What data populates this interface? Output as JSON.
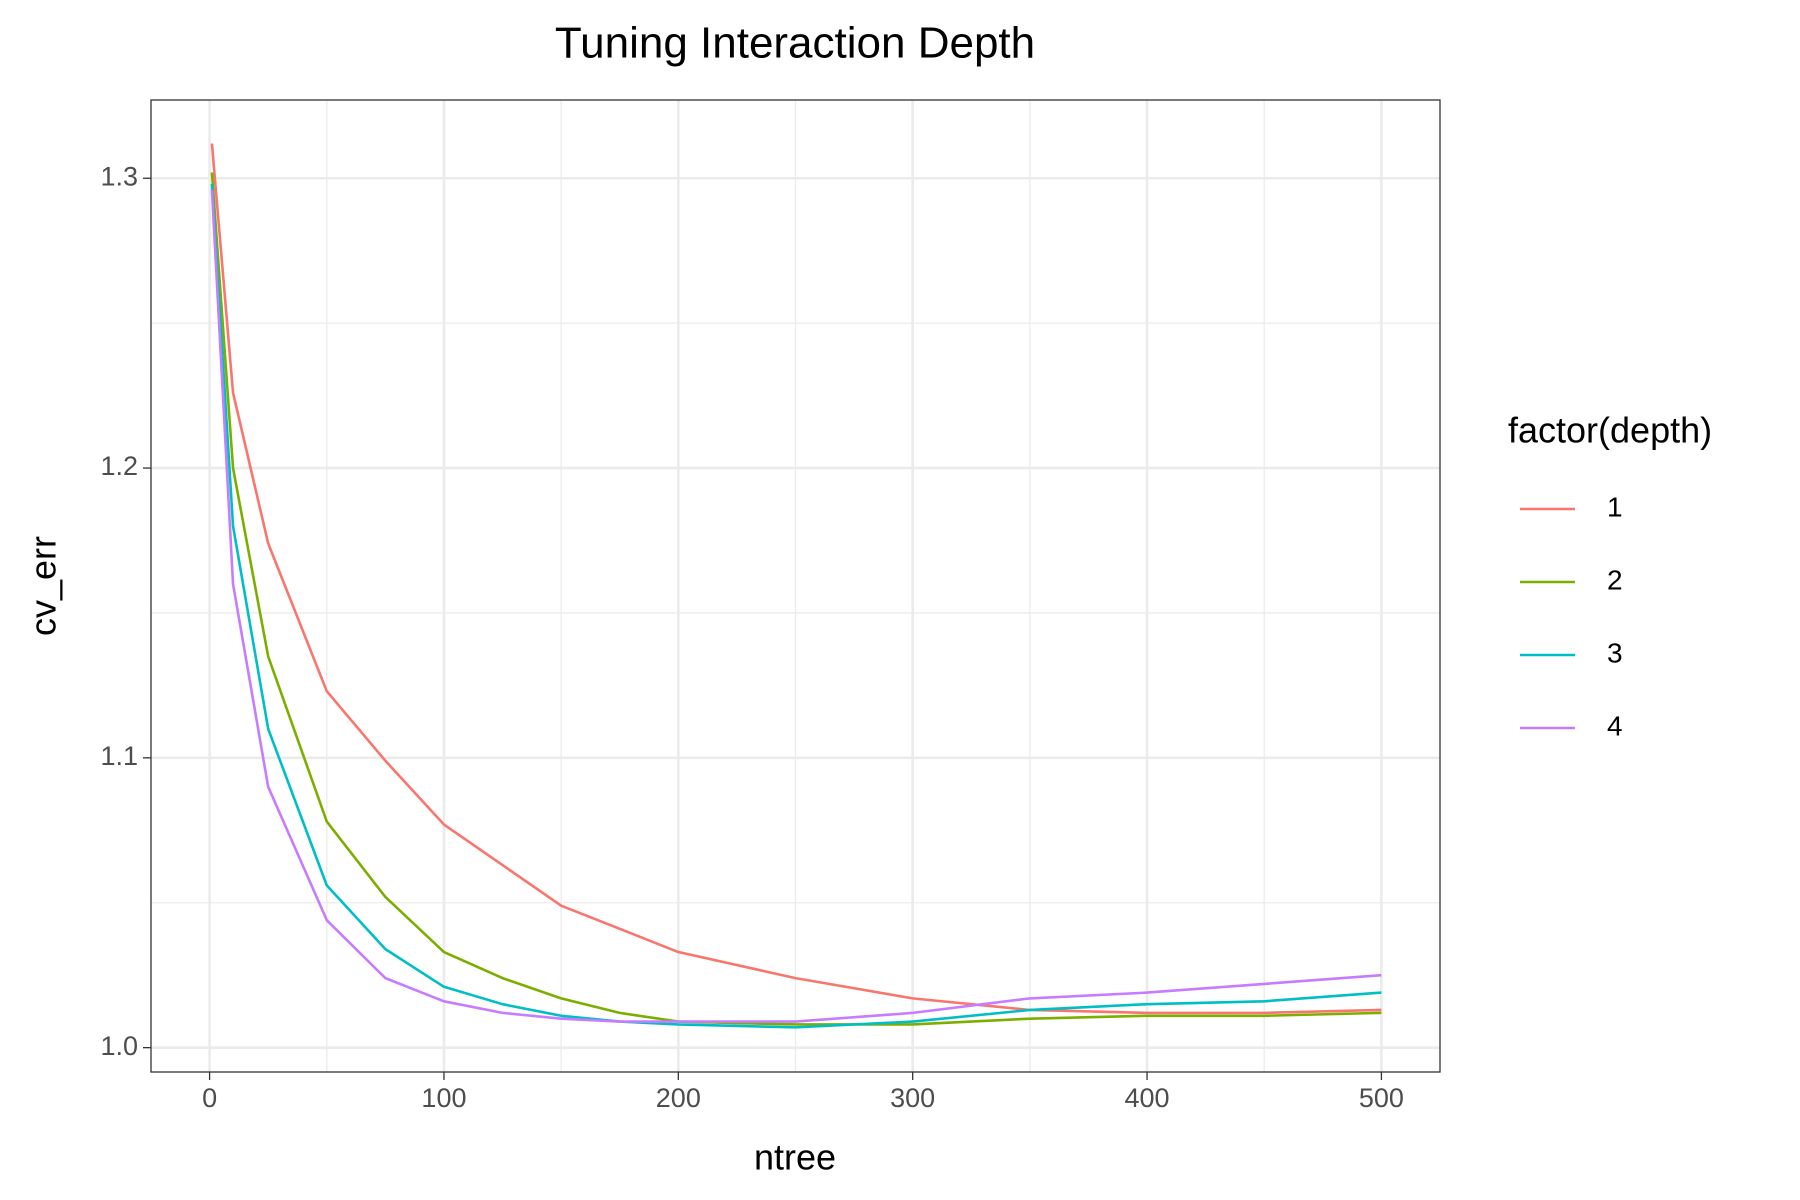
{
  "chart_data": {
    "type": "line",
    "title": "Tuning Interaction Depth",
    "x_label": "ntree",
    "y_label": "cv_err",
    "legend_title": "factor(depth)",
    "legend_position": "right",
    "x": [
      1,
      10,
      25,
      50,
      75,
      100,
      125,
      150,
      175,
      200,
      250,
      300,
      350,
      400,
      450,
      500
    ],
    "series": [
      {
        "name": "1",
        "color": "#F8766D",
        "values": [
          1.312,
          1.226,
          1.174,
          1.123,
          1.099,
          1.077,
          1.063,
          1.049,
          1.041,
          1.033,
          1.024,
          1.017,
          1.013,
          1.012,
          1.012,
          1.013
        ]
      },
      {
        "name": "2",
        "color": "#7CAE00",
        "values": [
          1.302,
          1.2,
          1.135,
          1.078,
          1.052,
          1.033,
          1.024,
          1.017,
          1.012,
          1.009,
          1.008,
          1.008,
          1.01,
          1.011,
          1.011,
          1.012
        ]
      },
      {
        "name": "3",
        "color": "#00BFC4",
        "values": [
          1.298,
          1.18,
          1.11,
          1.056,
          1.034,
          1.021,
          1.015,
          1.011,
          1.009,
          1.008,
          1.007,
          1.009,
          1.013,
          1.015,
          1.016,
          1.019
        ]
      },
      {
        "name": "4",
        "color": "#C77CFF",
        "values": [
          1.296,
          1.16,
          1.09,
          1.044,
          1.024,
          1.016,
          1.012,
          1.01,
          1.009,
          1.009,
          1.009,
          1.012,
          1.017,
          1.019,
          1.022,
          1.025
        ]
      }
    ],
    "xlim": [
      -25,
      525
    ],
    "ylim": [
      0.9916,
      1.327
    ],
    "xticks": [
      0,
      100,
      200,
      300,
      400,
      500
    ],
    "yticks": [
      {
        "value": 1,
        "label": "1.0"
      },
      1.1,
      1.2,
      1.3
    ],
    "x_minor_breaks": [
      50,
      150,
      250,
      350,
      450
    ],
    "y_minor_breaks": [
      1.05,
      1.15,
      1.25
    ],
    "grid": true
  }
}
